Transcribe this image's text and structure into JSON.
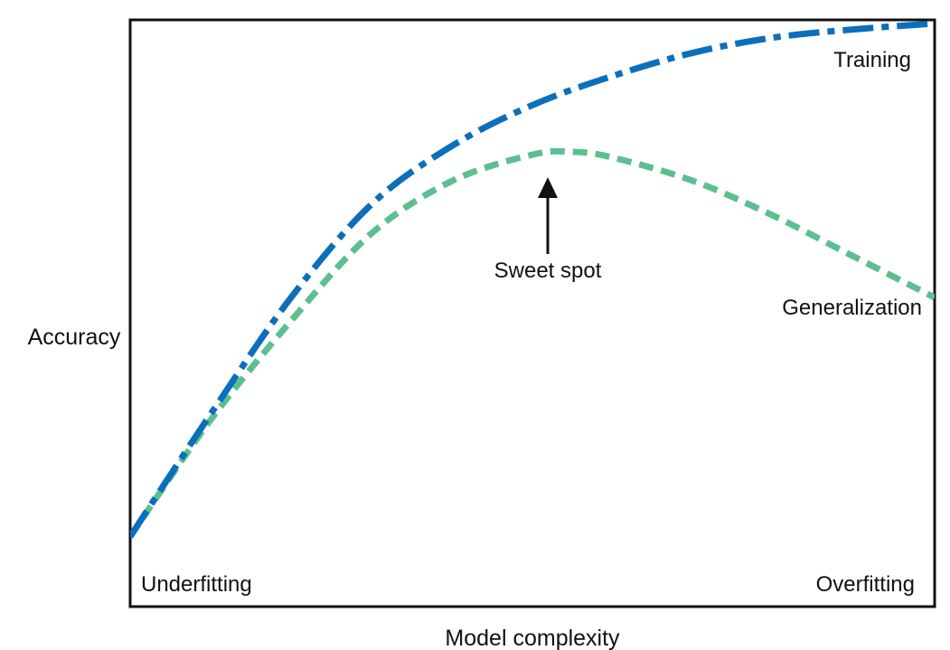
{
  "chart_data": {
    "type": "line",
    "title": "",
    "xlabel": "Model complexity",
    "ylabel": "Accuracy",
    "xlim": [
      0,
      1
    ],
    "ylim": [
      0,
      1
    ],
    "grid": false,
    "series": [
      {
        "name": "Training",
        "color": "#0b6fbb",
        "line_style": "dash-dot",
        "x": [
          0.0,
          0.1,
          0.2,
          0.3,
          0.4,
          0.5,
          0.6,
          0.7,
          0.8,
          0.9,
          1.0
        ],
        "y": [
          0.12,
          0.33,
          0.53,
          0.69,
          0.79,
          0.86,
          0.91,
          0.95,
          0.976,
          0.99,
          1.0
        ]
      },
      {
        "name": "Generalization",
        "color": "#5cbf8f",
        "line_style": "dashed",
        "x": [
          0.0,
          0.1,
          0.2,
          0.3,
          0.4,
          0.5,
          0.55,
          0.6,
          0.7,
          0.8,
          0.9,
          1.0
        ],
        "y": [
          0.12,
          0.32,
          0.49,
          0.64,
          0.73,
          0.775,
          0.78,
          0.77,
          0.73,
          0.67,
          0.6,
          0.53
        ]
      }
    ],
    "annotations": {
      "sweet_spot": "Sweet spot",
      "underfitting": "Underfitting",
      "overfitting": "Overfitting"
    },
    "legend": "none"
  }
}
